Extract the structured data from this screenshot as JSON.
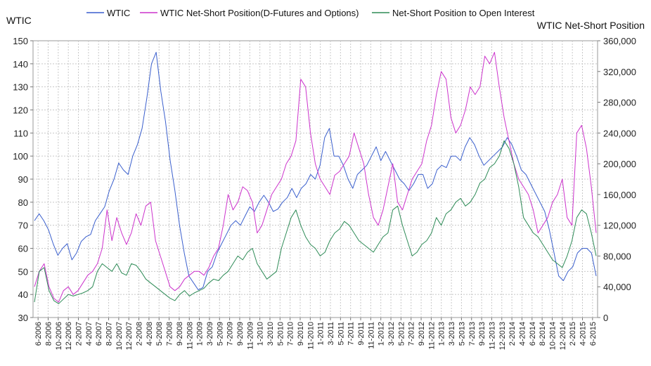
{
  "chart_data": {
    "type": "line",
    "title": "",
    "left_axis_title": "WTIC",
    "right_axis_title": "WTIC Net-Short Position",
    "left_ylim": [
      30,
      150
    ],
    "right_ylim": [
      0,
      360000
    ],
    "left_ticks": [
      "150",
      "140",
      "130",
      "120",
      "110",
      "100",
      "90",
      "80",
      "70",
      "60",
      "50",
      "40",
      "30"
    ],
    "right_ticks": [
      "360,000",
      "320,000",
      "280,000",
      "240,000",
      "200,000",
      "160,000",
      "120,000",
      "80,000",
      "40,000",
      "0"
    ],
    "x_ticks": [
      "6-2006",
      "8-2006",
      "10-2006",
      "12-2006",
      "2-2007",
      "4-2007",
      "6-2007",
      "8-2007",
      "10-2007",
      "12-2007",
      "2-2008",
      "4-2008",
      "5-2008",
      "7-2008",
      "9-2008",
      "11-2008",
      "1-2009",
      "3-2009",
      "5-2009",
      "7-2009",
      "9-2009",
      "11-2009",
      "1-2010",
      "3-2010",
      "5-2010",
      "7-2010",
      "9-2010",
      "11-2010",
      "1-2011",
      "3-2011",
      "5-2011",
      "7-2011",
      "9-2011",
      "11-2011",
      "1-2012",
      "3-2012",
      "5-2012",
      "7-2012",
      "9-2012",
      "11-2012",
      "1-2013",
      "3-2013",
      "5-2013",
      "7-2013",
      "9-2013",
      "11-2013",
      "12-2013",
      "2-2014",
      "4-2014",
      "6-2014",
      "8-2014",
      "10-2014",
      "12-2014",
      "2-2015",
      "4-2015",
      "6-2015"
    ],
    "grid": true,
    "legend_position": "top",
    "series": [
      {
        "name": "WTIC",
        "axis": "left",
        "color": "#3a5fcd",
        "values": [
          72,
          75,
          72,
          68,
          62,
          57,
          60,
          62,
          55,
          58,
          63,
          65,
          66,
          72,
          75,
          78,
          85,
          90,
          97,
          94,
          92,
          100,
          105,
          112,
          125,
          140,
          145,
          128,
          115,
          98,
          85,
          70,
          58,
          48,
          45,
          42,
          43,
          50,
          52,
          58,
          62,
          66,
          70,
          72,
          70,
          74,
          78,
          76,
          80,
          83,
          80,
          76,
          77,
          80,
          82,
          86,
          82,
          86,
          88,
          92,
          90,
          96,
          108,
          112,
          100,
          100,
          96,
          90,
          86,
          92,
          94,
          96,
          100,
          104,
          98,
          102,
          98,
          94,
          90,
          88,
          85,
          88,
          92,
          92,
          86,
          88,
          94,
          96,
          95,
          100,
          100,
          98,
          104,
          108,
          105,
          100,
          96,
          98,
          100,
          102,
          104,
          108,
          105,
          100,
          94,
          92,
          88,
          84,
          80,
          76,
          68,
          58,
          48,
          46,
          50,
          52,
          58,
          60,
          60,
          58,
          48
        ]
      },
      {
        "name": "WTIC Net-Short Position(D-Futures and Options)",
        "axis": "right",
        "color": "#cc33cc",
        "values": [
          40000,
          60000,
          70000,
          40000,
          25000,
          20000,
          35000,
          40000,
          30000,
          35000,
          45000,
          55000,
          60000,
          70000,
          90000,
          140000,
          100000,
          130000,
          110000,
          95000,
          110000,
          135000,
          120000,
          145000,
          150000,
          100000,
          80000,
          60000,
          40000,
          35000,
          40000,
          50000,
          55000,
          60000,
          60000,
          55000,
          65000,
          80000,
          90000,
          120000,
          160000,
          140000,
          150000,
          170000,
          165000,
          150000,
          110000,
          120000,
          140000,
          160000,
          170000,
          180000,
          200000,
          210000,
          230000,
          310000,
          300000,
          240000,
          200000,
          180000,
          170000,
          160000,
          185000,
          190000,
          200000,
          210000,
          240000,
          220000,
          200000,
          160000,
          130000,
          120000,
          140000,
          170000,
          200000,
          150000,
          140000,
          160000,
          180000,
          190000,
          200000,
          230000,
          250000,
          290000,
          320000,
          310000,
          260000,
          240000,
          250000,
          270000,
          300000,
          290000,
          300000,
          340000,
          330000,
          345000,
          300000,
          260000,
          230000,
          200000,
          180000,
          170000,
          160000,
          140000,
          110000,
          120000,
          130000,
          150000,
          160000,
          180000,
          130000,
          120000,
          240000,
          250000,
          220000,
          170000,
          110000
        ]
      },
      {
        "name": "Net-Short Position to Open Interest",
        "axis": "right",
        "color": "#2e8b57",
        "values": [
          20000,
          60000,
          65000,
          35000,
          22000,
          18000,
          24000,
          30000,
          28000,
          30000,
          32000,
          35000,
          40000,
          60000,
          70000,
          65000,
          60000,
          70000,
          58000,
          55000,
          70000,
          68000,
          60000,
          50000,
          45000,
          40000,
          35000,
          30000,
          25000,
          22000,
          30000,
          35000,
          28000,
          32000,
          35000,
          38000,
          45000,
          50000,
          48000,
          55000,
          60000,
          70000,
          80000,
          75000,
          85000,
          90000,
          70000,
          60000,
          50000,
          55000,
          60000,
          90000,
          110000,
          130000,
          140000,
          120000,
          105000,
          95000,
          90000,
          80000,
          85000,
          100000,
          110000,
          115000,
          125000,
          120000,
          110000,
          100000,
          95000,
          90000,
          85000,
          95000,
          105000,
          110000,
          140000,
          145000,
          120000,
          100000,
          80000,
          85000,
          95000,
          100000,
          110000,
          130000,
          120000,
          135000,
          140000,
          150000,
          155000,
          145000,
          150000,
          160000,
          175000,
          180000,
          195000,
          200000,
          210000,
          230000,
          220000,
          200000,
          170000,
          130000,
          120000,
          110000,
          105000,
          95000,
          85000,
          75000,
          70000,
          65000,
          80000,
          100000,
          130000,
          140000,
          135000,
          110000,
          80000
        ]
      }
    ]
  }
}
